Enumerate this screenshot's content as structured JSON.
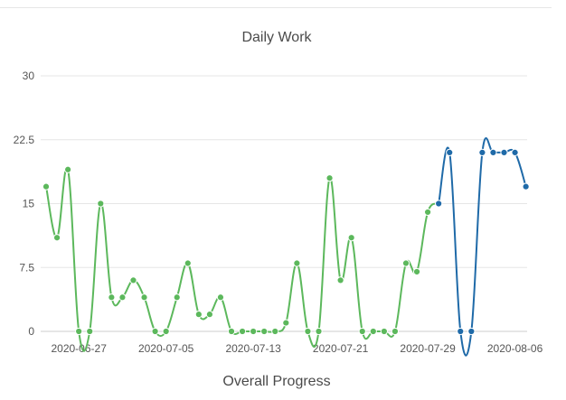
{
  "chart_data": {
    "type": "line",
    "title": "Daily Work",
    "xlabel": "",
    "ylabel": "",
    "ylim": [
      0,
      30
    ],
    "yticks": [
      "0",
      "7.5",
      "15",
      "22.5",
      "30"
    ],
    "yticks_values": [
      0,
      7.5,
      15,
      22.5,
      30
    ],
    "grid": true,
    "x_tick_labels": [
      "2020-06-27",
      "2020-07-05",
      "2020-07-13",
      "2020-07-21",
      "2020-07-29",
      "2020-08-06"
    ],
    "x": [
      "2020-06-24",
      "2020-06-25",
      "2020-06-26",
      "2020-06-27",
      "2020-06-28",
      "2020-06-29",
      "2020-06-30",
      "2020-07-01",
      "2020-07-02",
      "2020-07-03",
      "2020-07-04",
      "2020-07-05",
      "2020-07-06",
      "2020-07-07",
      "2020-07-08",
      "2020-07-09",
      "2020-07-10",
      "2020-07-11",
      "2020-07-12",
      "2020-07-13",
      "2020-07-14",
      "2020-07-15",
      "2020-07-16",
      "2020-07-17",
      "2020-07-18",
      "2020-07-19",
      "2020-07-20",
      "2020-07-21",
      "2020-07-22",
      "2020-07-23",
      "2020-07-24",
      "2020-07-25",
      "2020-07-26",
      "2020-07-27",
      "2020-07-28",
      "2020-07-29",
      "2020-07-30",
      "2020-07-31",
      "2020-08-01",
      "2020-08-02",
      "2020-08-03",
      "2020-08-04",
      "2020-08-05",
      "2020-08-06",
      "2020-08-07"
    ],
    "series": [
      {
        "values": [
          17,
          11,
          19,
          0,
          0,
          15,
          4,
          4,
          6,
          4,
          0,
          0,
          4,
          8,
          2,
          2,
          4,
          0,
          0,
          0,
          0,
          0,
          1,
          8,
          0,
          0,
          18,
          6,
          11,
          0,
          0,
          0,
          0,
          8,
          7,
          14,
          15,
          null,
          null,
          null,
          null,
          null,
          null,
          null,
          null
        ],
        "color": "#5cb85c"
      },
      {
        "values": [
          null,
          null,
          null,
          null,
          null,
          null,
          null,
          null,
          null,
          null,
          null,
          null,
          null,
          null,
          null,
          null,
          null,
          null,
          null,
          null,
          null,
          null,
          null,
          null,
          null,
          null,
          null,
          null,
          null,
          null,
          null,
          null,
          null,
          null,
          null,
          null,
          15,
          21,
          0,
          0,
          21,
          21,
          21,
          21,
          17
        ],
        "color": "#1f6aa8"
      }
    ]
  },
  "footer": {
    "label": "Overall Progress"
  }
}
